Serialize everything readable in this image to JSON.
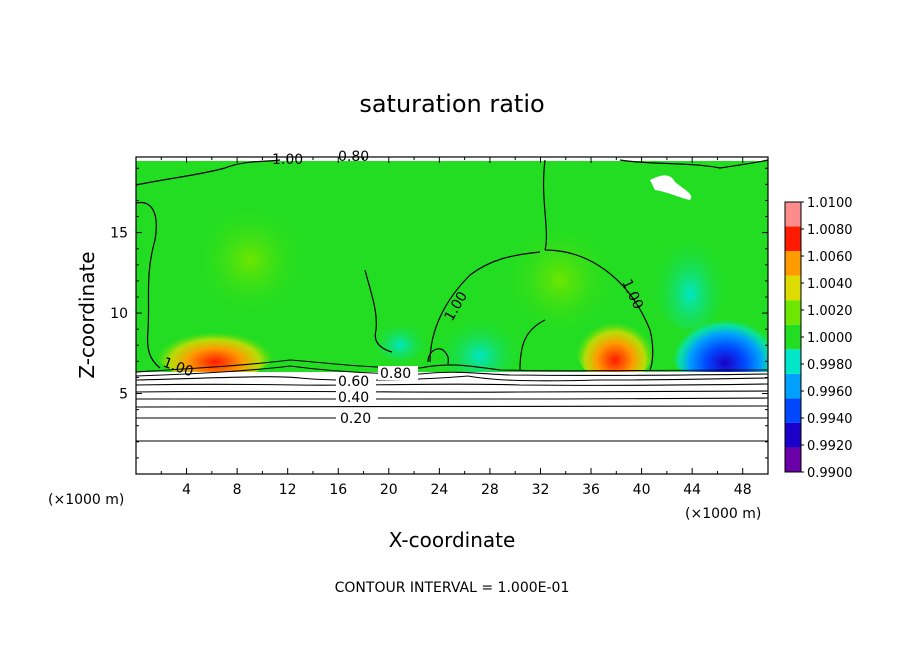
{
  "chart_data": {
    "type": "heatmap",
    "title": "saturation ratio",
    "xlabel": "X-coordinate",
    "ylabel": "Z-coordinate",
    "x_unit": "(×1000 m)",
    "z_unit": "(×1000 m)",
    "footer": "CONTOUR INTERVAL = 1.000E-01",
    "xlim": [
      0,
      50
    ],
    "ylim": [
      0,
      19.7
    ],
    "x_ticks": [
      4,
      8,
      12,
      16,
      20,
      24,
      28,
      32,
      36,
      40,
      44,
      48
    ],
    "y_ticks": [
      5,
      10,
      15
    ],
    "colorbar": {
      "levels": [
        0.99,
        0.992,
        0.994,
        0.996,
        0.998,
        1.0,
        1.002,
        1.004,
        1.006,
        1.008,
        1.01
      ],
      "tick_labels": [
        "1.0100",
        "1.0080",
        "1.0060",
        "1.0040",
        "1.0020",
        "1.0000",
        "0.9980",
        "0.9960",
        "0.9940",
        "0.9920",
        "0.9900"
      ],
      "colors": [
        "#6a00a8",
        "#1a00c8",
        "#0048ff",
        "#00a0ff",
        "#00e6c8",
        "#22dd22",
        "#6ee600",
        "#dcdc00",
        "#ff9a00",
        "#ff1a00",
        "#ff8c8c"
      ]
    },
    "contour_labels": [
      "1.00",
      "0.80",
      "1.00",
      "1.00",
      "1.00",
      "0.80",
      "0.60",
      "0.40",
      "0.20"
    ],
    "contour_interval": 0.1
  }
}
